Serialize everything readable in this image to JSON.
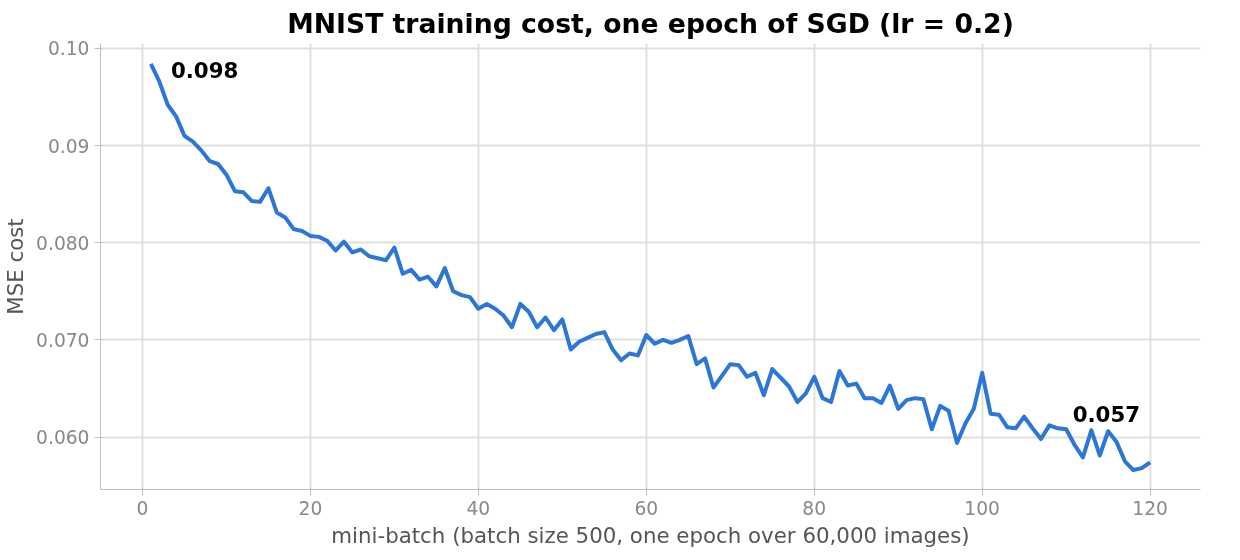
{
  "chart_data": {
    "type": "line",
    "title": "MNIST training cost, one epoch of SGD (lr = 0.2)",
    "xlabel": "mini-batch (batch size 500, one epoch over 60,000 images)",
    "ylabel": "MSE cost",
    "x": [
      1,
      2,
      3,
      4,
      5,
      6,
      7,
      8,
      9,
      10,
      11,
      12,
      13,
      14,
      15,
      16,
      17,
      18,
      19,
      20,
      21,
      22,
      23,
      24,
      25,
      26,
      27,
      28,
      29,
      30,
      31,
      32,
      33,
      34,
      35,
      36,
      37,
      38,
      39,
      40,
      41,
      42,
      43,
      44,
      45,
      46,
      47,
      48,
      49,
      50,
      51,
      52,
      53,
      54,
      55,
      56,
      57,
      58,
      59,
      60,
      61,
      62,
      63,
      64,
      65,
      66,
      67,
      68,
      69,
      70,
      71,
      72,
      73,
      74,
      75,
      76,
      77,
      78,
      79,
      80,
      81,
      82,
      83,
      84,
      85,
      86,
      87,
      88,
      89,
      90,
      91,
      92,
      93,
      94,
      95,
      96,
      97,
      98,
      99,
      100,
      101,
      102,
      103,
      104,
      105,
      106,
      107,
      108,
      109,
      110,
      111,
      112,
      113,
      114,
      115,
      116,
      117,
      118,
      119,
      120
    ],
    "series": [
      {
        "color": "#2b76d6",
        "values": [
          0.0984,
          0.0966,
          0.0942,
          0.093,
          0.091,
          0.0904,
          0.0895,
          0.0884,
          0.0881,
          0.087,
          0.0853,
          0.0852,
          0.0843,
          0.0842,
          0.0856,
          0.0831,
          0.0826,
          0.0814,
          0.0812,
          0.0807,
          0.0806,
          0.0802,
          0.0792,
          0.0801,
          0.079,
          0.0793,
          0.0786,
          0.0784,
          0.0782,
          0.0795,
          0.0768,
          0.0772,
          0.0762,
          0.0765,
          0.0755,
          0.0774,
          0.075,
          0.0746,
          0.0744,
          0.0732,
          0.0737,
          0.0732,
          0.0725,
          0.0713,
          0.0737,
          0.0729,
          0.0713,
          0.0723,
          0.071,
          0.0721,
          0.069,
          0.0698,
          0.0702,
          0.0706,
          0.0708,
          0.069,
          0.0679,
          0.0686,
          0.0684,
          0.0705,
          0.0696,
          0.07,
          0.0697,
          0.07,
          0.0704,
          0.0675,
          0.0681,
          0.0651,
          0.0663,
          0.0675,
          0.0674,
          0.0662,
          0.0666,
          0.0643,
          0.067,
          0.0661,
          0.0652,
          0.0636,
          0.0645,
          0.0662,
          0.064,
          0.0636,
          0.0668,
          0.0653,
          0.0655,
          0.064,
          0.064,
          0.0635,
          0.0653,
          0.0629,
          0.0638,
          0.064,
          0.0639,
          0.0608,
          0.0632,
          0.0627,
          0.0594,
          0.0614,
          0.0629,
          0.0666,
          0.0624,
          0.0623,
          0.061,
          0.0609,
          0.0621,
          0.0609,
          0.0598,
          0.0612,
          0.0609,
          0.0608,
          0.0592,
          0.0579,
          0.0607,
          0.0581,
          0.0606,
          0.0595,
          0.0575,
          0.0566,
          0.0568,
          0.0574
        ]
      }
    ],
    "annotations": [
      {
        "text": "0.098",
        "x": 1,
        "y": 0.0984
      },
      {
        "text": "0.057",
        "x": 120,
        "y": 0.0574
      }
    ],
    "xlim": [
      -5,
      126
    ],
    "ylim": [
      0.0546,
      0.1005
    ],
    "xticks": [
      0,
      20,
      40,
      60,
      80,
      100,
      120
    ],
    "yticks": [
      {
        "value": 0.06,
        "label": "0.060"
      },
      {
        "value": 0.07,
        "label": "0.070"
      },
      {
        "value": 0.08,
        "label": "0.080"
      },
      {
        "value": 0.09,
        "label": "0.09"
      },
      {
        "value": 0.1,
        "label": "0.10"
      }
    ],
    "grid": true,
    "line_style": "solid",
    "marker": "none"
  }
}
